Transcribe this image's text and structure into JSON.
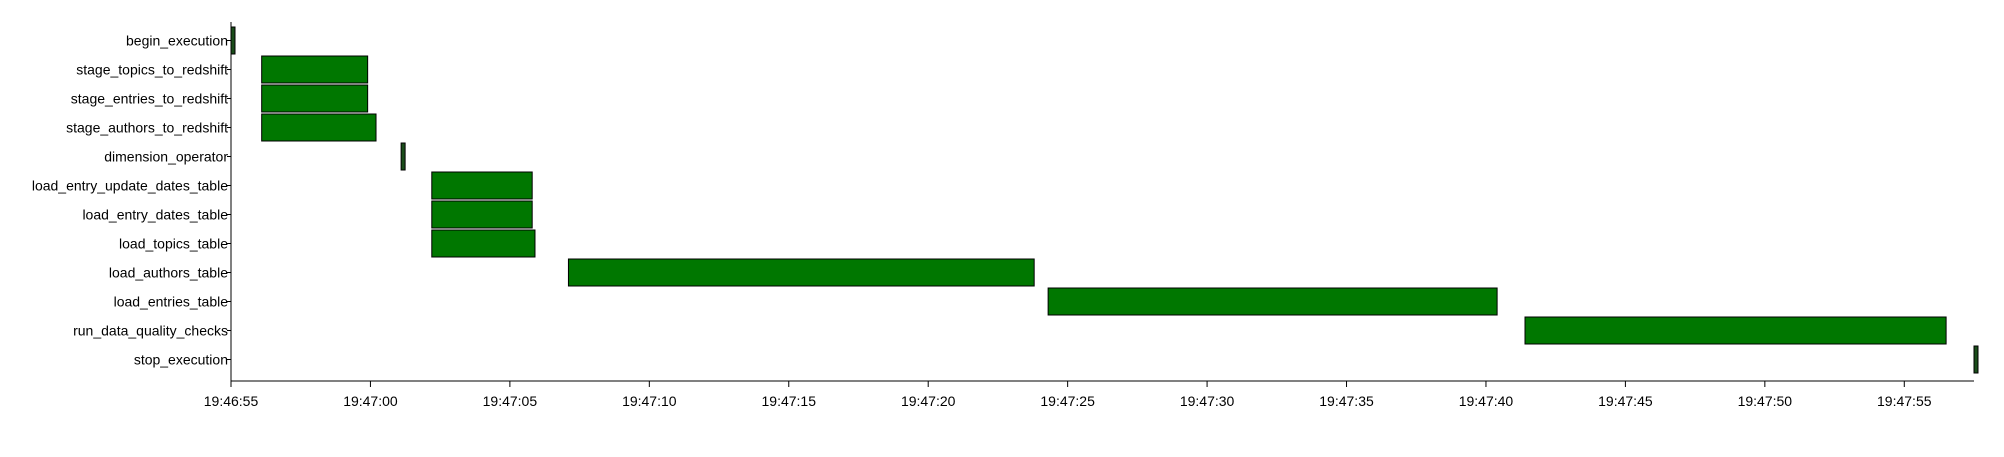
{
  "chart_data": {
    "type": "gantt",
    "title": "",
    "xlabel": "",
    "ylabel": "",
    "x_unit": "time (HH:MM:SS)",
    "xlim": [
      "19:46:55",
      "19:47:57.5"
    ],
    "x_ticks": [
      "19:46:55",
      "19:47:00",
      "19:47:05",
      "19:47:10",
      "19:47:15",
      "19:47:20",
      "19:47:25",
      "19:47:30",
      "19:47:35",
      "19:47:40",
      "19:47:45",
      "19:47:50",
      "19:47:55"
    ],
    "bar_color": "#007700",
    "bar_stroke_color": "#000000",
    "milestone_color": "#1a4d1a",
    "grid": false,
    "legend": "none",
    "tasks": [
      {
        "name": "begin_execution",
        "start": "19:46:55.0",
        "end": "19:46:55.1"
      },
      {
        "name": "stage_topics_to_redshift",
        "start": "19:46:56.1",
        "end": "19:46:59.9"
      },
      {
        "name": "stage_entries_to_redshift",
        "start": "19:46:56.1",
        "end": "19:46:59.9"
      },
      {
        "name": "stage_authors_to_redshift",
        "start": "19:46:56.1",
        "end": "19:47:00.2"
      },
      {
        "name": "dimension_operator",
        "start": "19:47:01.1",
        "end": "19:47:01.3"
      },
      {
        "name": "load_entry_update_dates_table",
        "start": "19:47:02.2",
        "end": "19:47:05.8"
      },
      {
        "name": "load_entry_dates_table",
        "start": "19:47:02.2",
        "end": "19:47:05.8"
      },
      {
        "name": "load_topics_table",
        "start": "19:47:02.2",
        "end": "19:47:05.9"
      },
      {
        "name": "load_authors_table",
        "start": "19:47:07.1",
        "end": "19:47:23.8"
      },
      {
        "name": "load_entries_table",
        "start": "19:47:24.3",
        "end": "19:47:40.4"
      },
      {
        "name": "run_data_quality_checks",
        "start": "19:47:41.4",
        "end": "19:47:56.5"
      },
      {
        "name": "stop_execution",
        "start": "19:47:57.5",
        "end": "19:47:57.6"
      }
    ]
  }
}
